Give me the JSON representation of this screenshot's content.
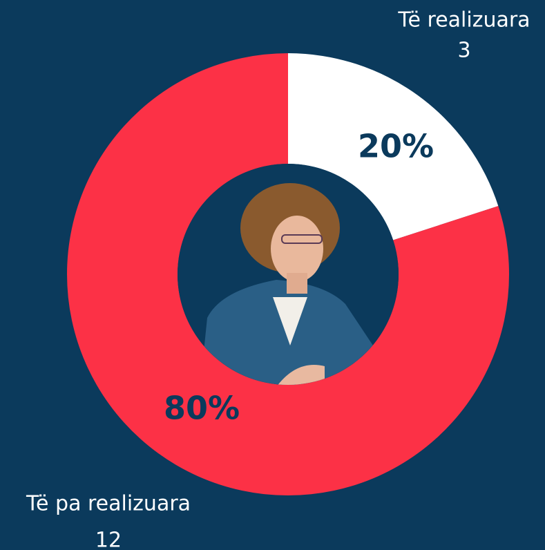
{
  "chart_data": {
    "type": "donut",
    "categories": [
      "Të realizuara",
      "Të pa realizuara"
    ],
    "values": [
      3,
      12
    ],
    "percent_labels": [
      "20%",
      "80%"
    ],
    "colors": [
      "#ffffff",
      "#fc3146"
    ]
  }
}
